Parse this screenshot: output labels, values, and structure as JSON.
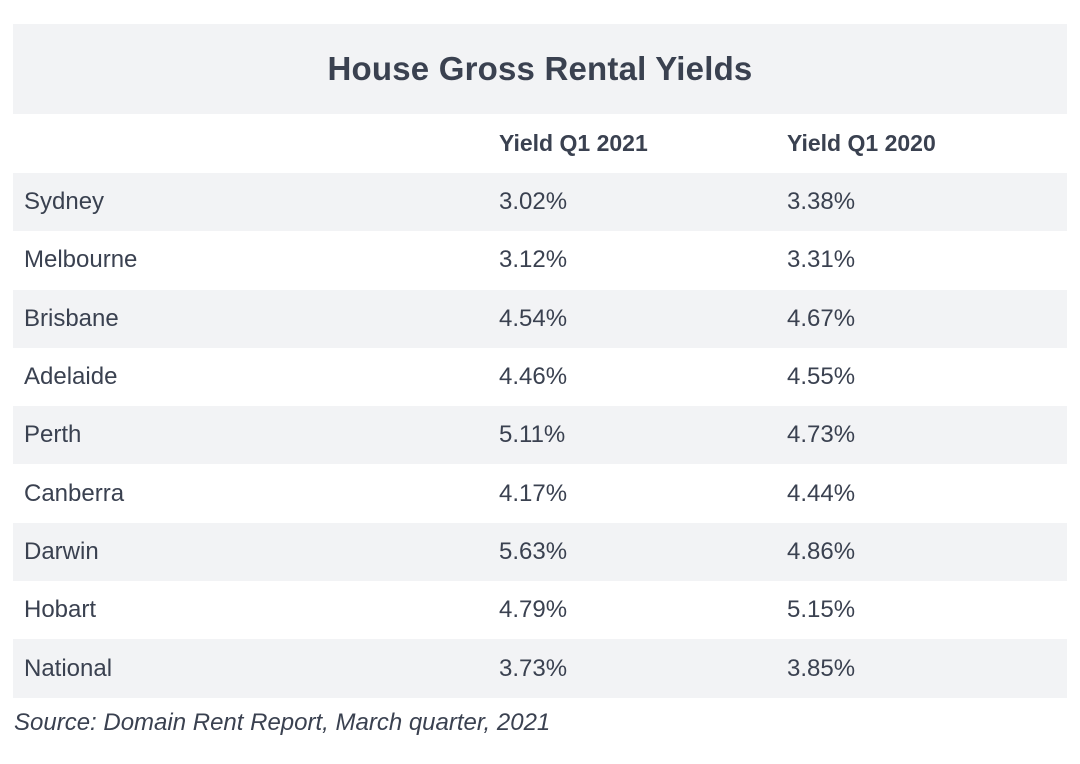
{
  "chart_data": {
    "type": "table",
    "title": "House Gross Rental Yields",
    "columns": [
      "",
      "Yield Q1 2021",
      "Yield Q1 2020"
    ],
    "rows": [
      {
        "city": "Sydney",
        "yield_2021": "3.02%",
        "yield_2020": "3.38%"
      },
      {
        "city": "Melbourne",
        "yield_2021": "3.12%",
        "yield_2020": "3.31%"
      },
      {
        "city": "Brisbane",
        "yield_2021": "4.54%",
        "yield_2020": "4.67%"
      },
      {
        "city": "Adelaide",
        "yield_2021": "4.46%",
        "yield_2020": "4.55%"
      },
      {
        "city": "Perth",
        "yield_2021": "5.11%",
        "yield_2020": "4.73%"
      },
      {
        "city": "Canberra",
        "yield_2021": "4.17%",
        "yield_2020": "4.44%"
      },
      {
        "city": "Darwin",
        "yield_2021": "5.63%",
        "yield_2020": "4.86%"
      },
      {
        "city": "Hobart",
        "yield_2021": "4.79%",
        "yield_2020": "5.15%"
      },
      {
        "city": "National",
        "yield_2021": "3.73%",
        "yield_2020": "3.85%"
      }
    ],
    "source": "Source: Domain Rent Report, March quarter, 2021"
  },
  "colors": {
    "text": "#3a4150",
    "band": "#f2f3f5",
    "background": "#ffffff"
  }
}
